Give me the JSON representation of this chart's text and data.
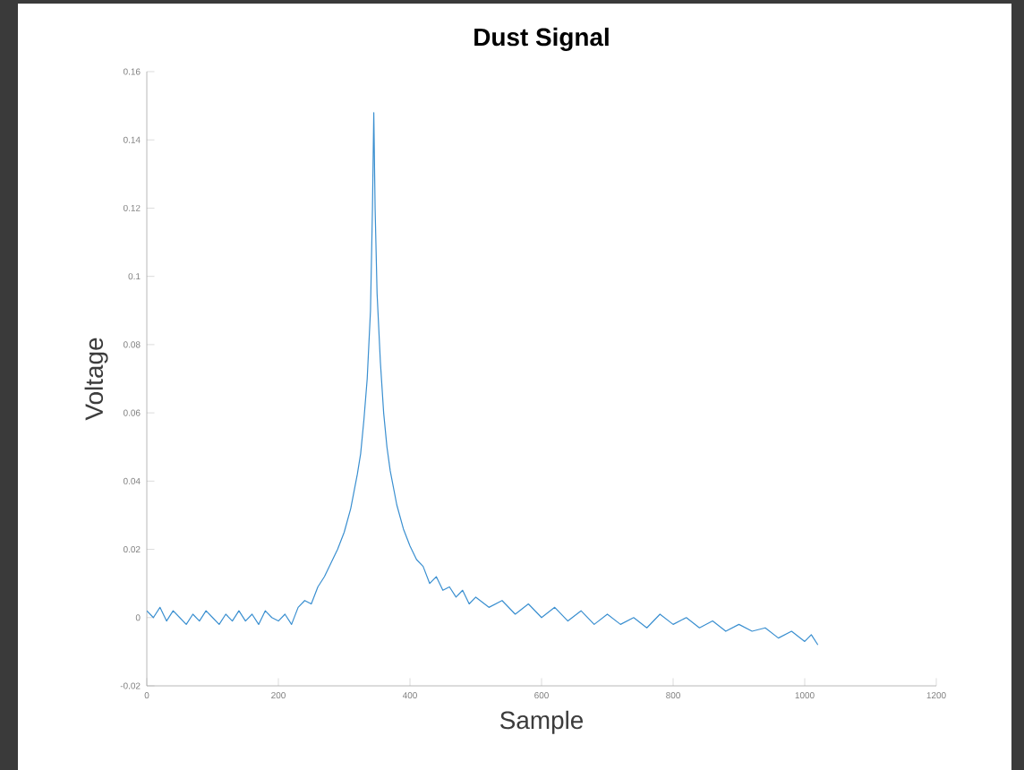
{
  "chart_data": {
    "type": "line",
    "title": "Dust Signal",
    "xlabel": "Sample",
    "ylabel": "Voltage",
    "xlim": [
      0,
      1200
    ],
    "xticks": [
      0,
      200,
      400,
      600,
      800,
      1000,
      1200
    ],
    "ylim": [
      -0.02,
      0.16
    ],
    "yticks": [
      -0.02,
      0,
      0.02,
      0.04,
      0.06,
      0.08,
      0.1,
      0.12,
      0.14,
      0.16
    ],
    "grid": false,
    "marker": "none",
    "line_style": "solid",
    "series": [
      {
        "color": "#3a8fd0",
        "x": [
          0,
          10,
          20,
          30,
          40,
          50,
          60,
          70,
          80,
          90,
          100,
          110,
          120,
          130,
          140,
          150,
          160,
          170,
          180,
          190,
          200,
          210,
          220,
          230,
          240,
          250,
          260,
          270,
          280,
          290,
          300,
          310,
          320,
          325,
          330,
          335,
          340,
          343,
          345,
          347,
          350,
          355,
          360,
          365,
          370,
          380,
          390,
          400,
          410,
          420,
          430,
          440,
          450,
          460,
          470,
          480,
          490,
          500,
          520,
          540,
          560,
          580,
          600,
          620,
          640,
          660,
          680,
          700,
          720,
          740,
          760,
          780,
          800,
          820,
          840,
          860,
          880,
          900,
          920,
          940,
          960,
          980,
          1000,
          1010,
          1020
        ],
        "values": [
          0.002,
          0.0,
          0.003,
          -0.001,
          0.002,
          0.0,
          -0.002,
          0.001,
          -0.001,
          0.002,
          0.0,
          -0.002,
          0.001,
          -0.001,
          0.002,
          -0.001,
          0.001,
          -0.002,
          0.002,
          0.0,
          -0.001,
          0.001,
          -0.002,
          0.003,
          0.005,
          0.004,
          0.009,
          0.012,
          0.016,
          0.02,
          0.025,
          0.032,
          0.042,
          0.048,
          0.058,
          0.07,
          0.09,
          0.12,
          0.148,
          0.12,
          0.095,
          0.075,
          0.06,
          0.05,
          0.043,
          0.033,
          0.026,
          0.021,
          0.017,
          0.015,
          0.01,
          0.012,
          0.008,
          0.009,
          0.006,
          0.008,
          0.004,
          0.006,
          0.003,
          0.005,
          0.001,
          0.004,
          0.0,
          0.003,
          -0.001,
          0.002,
          -0.002,
          0.001,
          -0.002,
          0.0,
          -0.003,
          0.001,
          -0.002,
          0.0,
          -0.003,
          -0.001,
          -0.004,
          -0.002,
          -0.004,
          -0.003,
          -0.006,
          -0.004,
          -0.007,
          -0.005,
          -0.008
        ]
      }
    ]
  }
}
